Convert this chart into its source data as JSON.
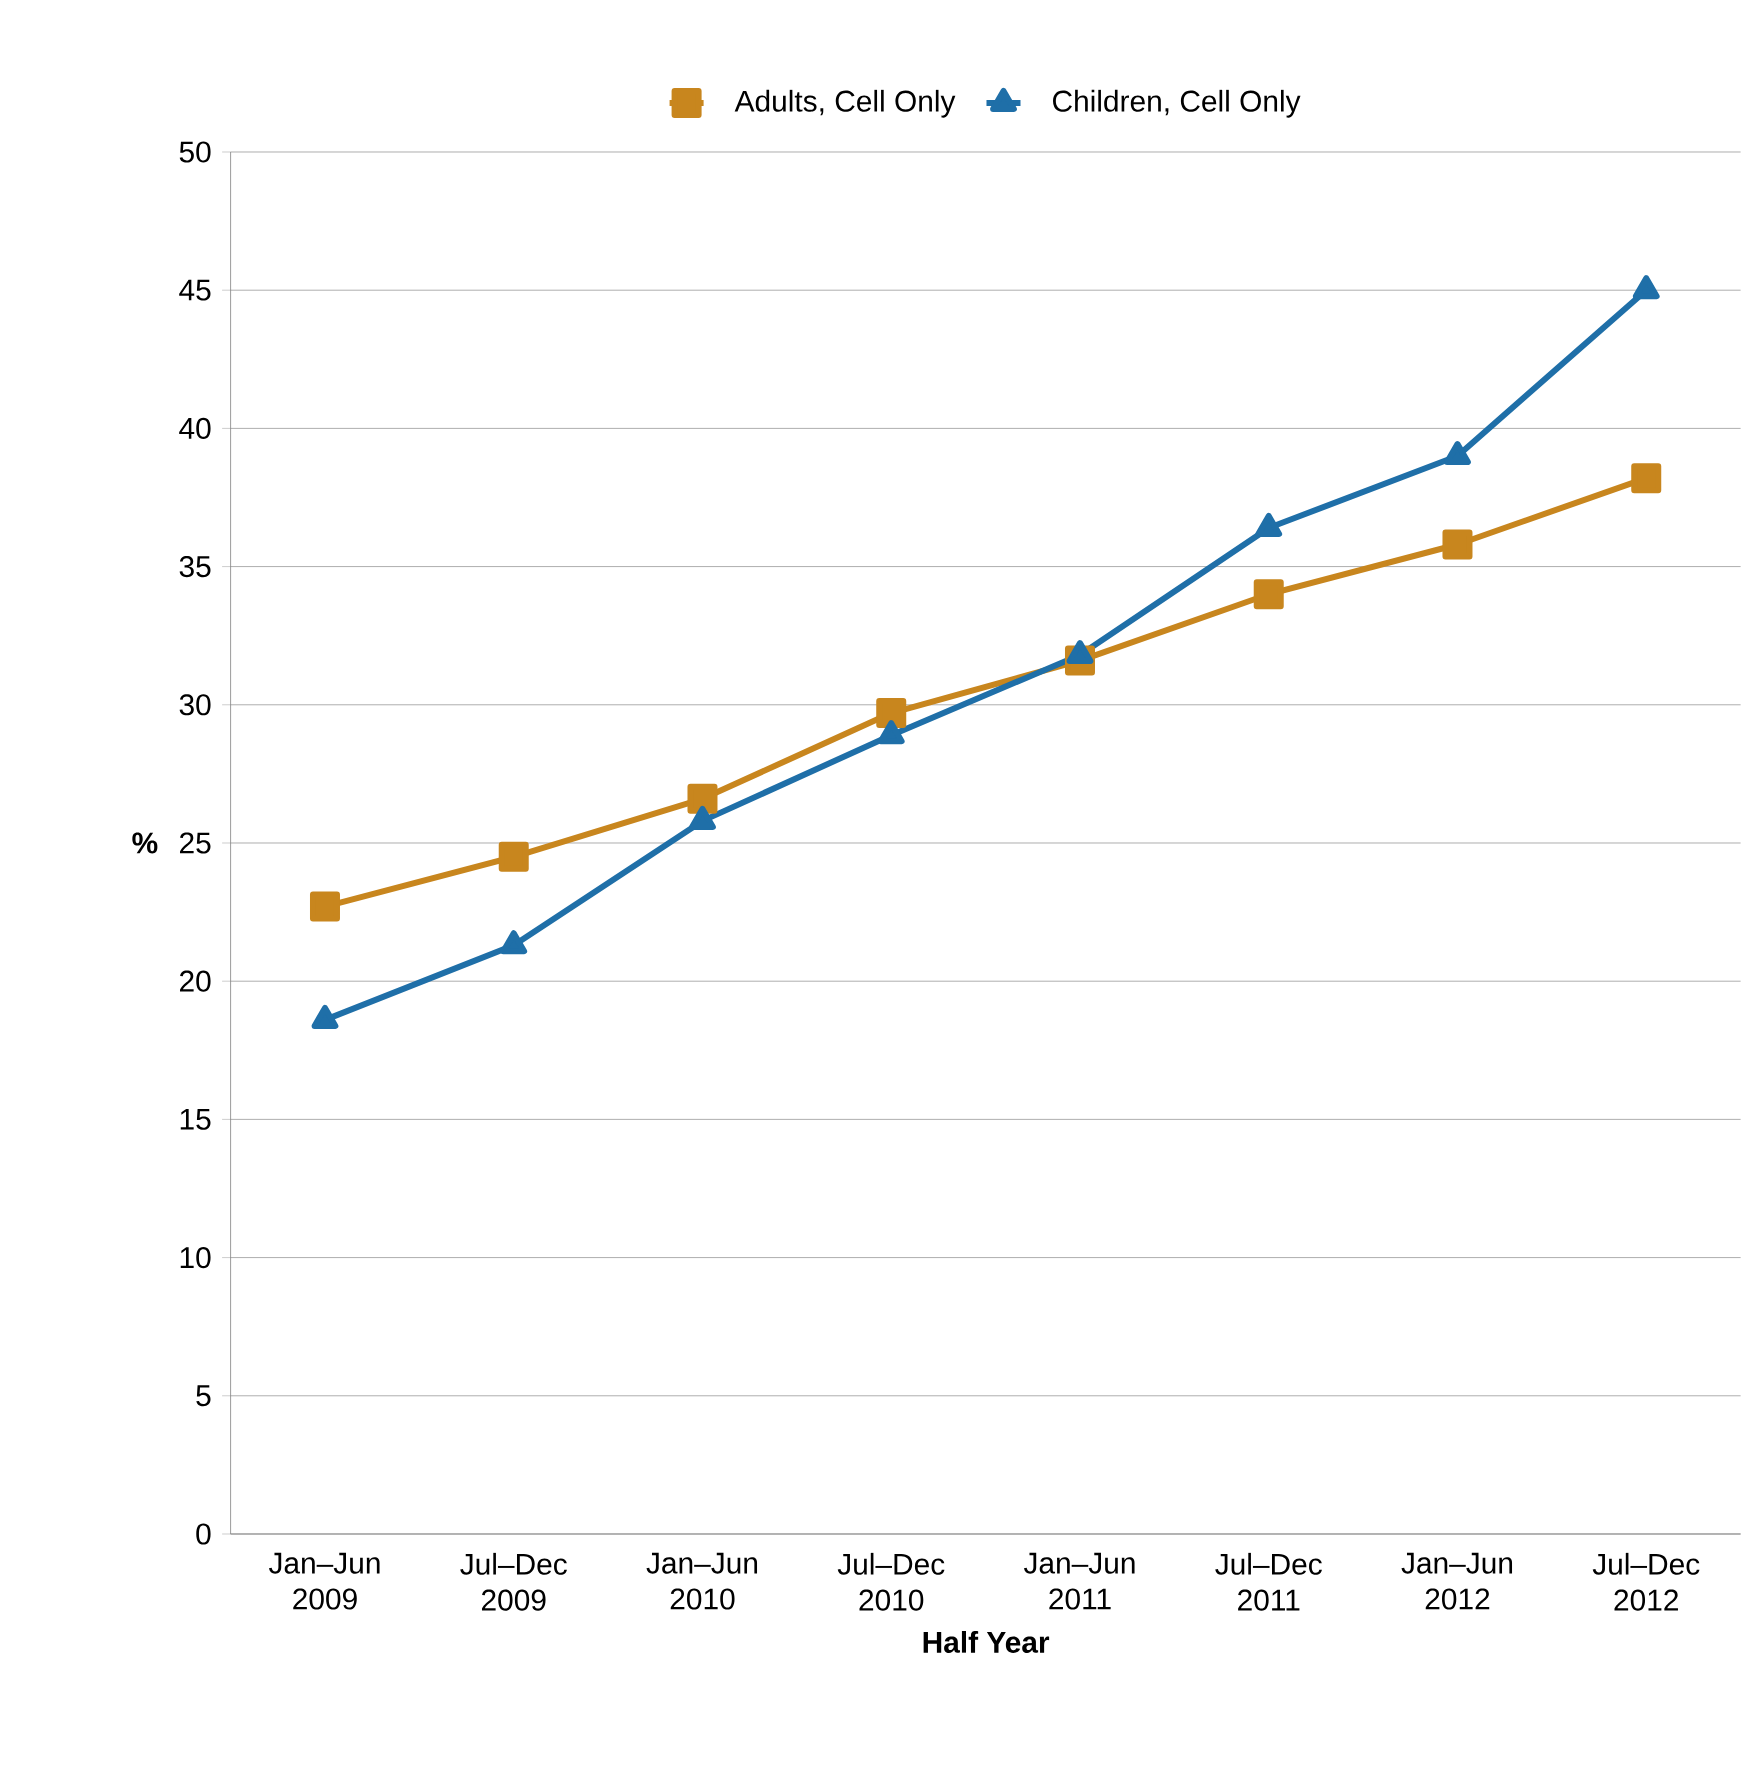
{
  "chart_data": {
    "type": "line",
    "xlabel": "Half Year",
    "ylabel": "%",
    "categories": [
      "Jan–Jun 2009",
      "Jul–Dec 2009",
      "Jan–Jun 2010",
      "Jul–Dec 2010",
      "Jan–Jun 2011",
      "Jul–Dec 2011",
      "Jan–Jun 2012",
      "Jul–Dec 2012"
    ],
    "series": [
      {
        "name": "Adults, Cell Only",
        "color": "#c8861e",
        "marker": "square",
        "values": [
          22.7,
          24.5,
          26.6,
          29.7,
          31.6,
          34.0,
          35.8,
          38.2
        ]
      },
      {
        "name": "Children, Cell Only",
        "color": "#1f6fa8",
        "marker": "triangle",
        "values": [
          18.6,
          21.3,
          25.8,
          28.9,
          31.8,
          36.4,
          39.0,
          45.0
        ]
      }
    ],
    "ylim": [
      0,
      50
    ],
    "yticks": [
      0,
      5,
      10,
      15,
      20,
      25,
      30,
      35,
      40,
      45,
      50
    ],
    "grid": "y",
    "legend": "top",
    "line_style": "solid"
  }
}
